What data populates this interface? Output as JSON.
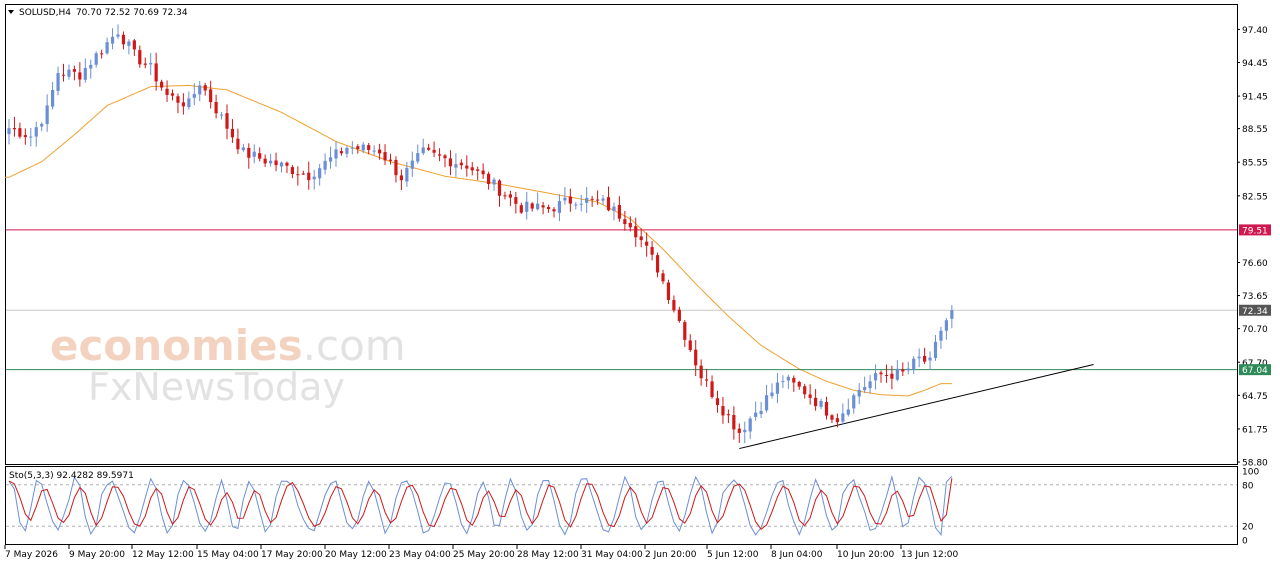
{
  "header": {
    "symbol": "SOLUSD,H4",
    "ohlc": "70.70 72.52 70.69 72.34"
  },
  "watermark": {
    "brand_a": "economies",
    "brand_b": ".com",
    "brand_c": "FxNewsToday"
  },
  "colors": {
    "bull": "#6b8fd6",
    "bear": "#d01818",
    "ma": "#f0a030",
    "resistance": "#d01850",
    "support": "#2e8b57",
    "current": "#999999",
    "trend": "#000000",
    "stoch_main": "#6b8fd6",
    "stoch_signal": "#d01818"
  },
  "chart_data": {
    "type": "candlestick",
    "timeframe": "H4",
    "ylim": [
      58.8,
      99.4
    ],
    "y_ticks": [
      "97.40",
      "94.45",
      "91.45",
      "88.55",
      "85.55",
      "82.55",
      "79.51",
      "76.60",
      "73.65",
      "72.34",
      "70.70",
      "67.70",
      "67.04",
      "64.75",
      "61.75",
      "58.80"
    ],
    "x_ticks": [
      "7 May 2026",
      "9 May 20:00",
      "12 May 12:00",
      "15 May 04:00",
      "17 May 20:00",
      "20 May 12:00",
      "23 May 04:00",
      "25 May 20:00",
      "28 May 12:00",
      "31 May 04:00",
      "2 Jun 20:00",
      "5 Jun 12:00",
      "8 Jun 04:00",
      "10 Jun 20:00",
      "13 Jun 12:00"
    ],
    "levels": {
      "resistance": {
        "value": 79.51,
        "label": "79.51"
      },
      "current": {
        "value": 72.34,
        "label": "72.34"
      },
      "support": {
        "value": 67.04,
        "label": "67.04"
      }
    },
    "trendline": {
      "from": [
        134,
        60.0
      ],
      "to": [
        199,
        67.5
      ]
    },
    "anchors": [
      [
        0,
        88.6
      ],
      [
        4,
        87.9
      ],
      [
        7,
        90.2
      ],
      [
        9,
        93.6
      ],
      [
        13,
        93.4
      ],
      [
        18,
        96.2
      ],
      [
        20,
        97.3
      ],
      [
        23,
        95.1
      ],
      [
        26,
        93.9
      ],
      [
        29,
        91.5
      ],
      [
        33,
        90.7
      ],
      [
        35,
        92.7
      ],
      [
        40,
        88.7
      ],
      [
        43,
        86.4
      ],
      [
        49,
        85.4
      ],
      [
        55,
        84.4
      ],
      [
        62,
        86.9
      ],
      [
        68,
        86.6
      ],
      [
        72,
        84.2
      ],
      [
        76,
        86.4
      ],
      [
        84,
        85.3
      ],
      [
        89,
        83.5
      ],
      [
        94,
        81.5
      ],
      [
        99,
        81.4
      ],
      [
        104,
        82.3
      ],
      [
        109,
        81.9
      ],
      [
        114,
        80.2
      ],
      [
        119,
        76.1
      ],
      [
        123,
        71.4
      ],
      [
        127,
        66.5
      ],
      [
        131,
        63.5
      ],
      [
        134,
        61.5
      ],
      [
        138,
        63.9
      ],
      [
        142,
        66.2
      ],
      [
        146,
        65.1
      ],
      [
        150,
        63.4
      ],
      [
        152,
        62.7
      ],
      [
        156,
        65.3
      ],
      [
        160,
        66.6
      ],
      [
        164,
        66.7
      ],
      [
        167,
        68.0
      ],
      [
        169,
        67.6
      ],
      [
        171,
        70.6
      ],
      [
        173,
        72.3
      ]
    ],
    "ma_anchors": [
      [
        0,
        84.2
      ],
      [
        6,
        85.6
      ],
      [
        12,
        88.0
      ],
      [
        18,
        90.6
      ],
      [
        26,
        92.3
      ],
      [
        33,
        92.4
      ],
      [
        40,
        92.0
      ],
      [
        50,
        90.0
      ],
      [
        60,
        87.4
      ],
      [
        70,
        85.6
      ],
      [
        80,
        84.3
      ],
      [
        90,
        83.6
      ],
      [
        100,
        82.7
      ],
      [
        108,
        82.0
      ],
      [
        114,
        80.5
      ],
      [
        120,
        77.8
      ],
      [
        126,
        74.7
      ],
      [
        132,
        71.8
      ],
      [
        138,
        69.2
      ],
      [
        145,
        67.1
      ],
      [
        150,
        66.0
      ],
      [
        155,
        65.2
      ],
      [
        160,
        64.8
      ],
      [
        165,
        64.7
      ],
      [
        168,
        65.2
      ],
      [
        171,
        65.8
      ]
    ],
    "stochastic": {
      "label": "Sto(5,3,3) 92.4282 89.5971",
      "main": 92.4282,
      "signal": 89.5971,
      "ylim": [
        0,
        100
      ],
      "ticks": [
        "100",
        "80",
        "20",
        "0"
      ],
      "levels": [
        80,
        20
      ],
      "periods_main": [
        5,
        7,
        6,
        8,
        6,
        7,
        5,
        6,
        9,
        7,
        6,
        8,
        7,
        5,
        6,
        7,
        8,
        6,
        7,
        6,
        9,
        7,
        6,
        8
      ]
    }
  }
}
